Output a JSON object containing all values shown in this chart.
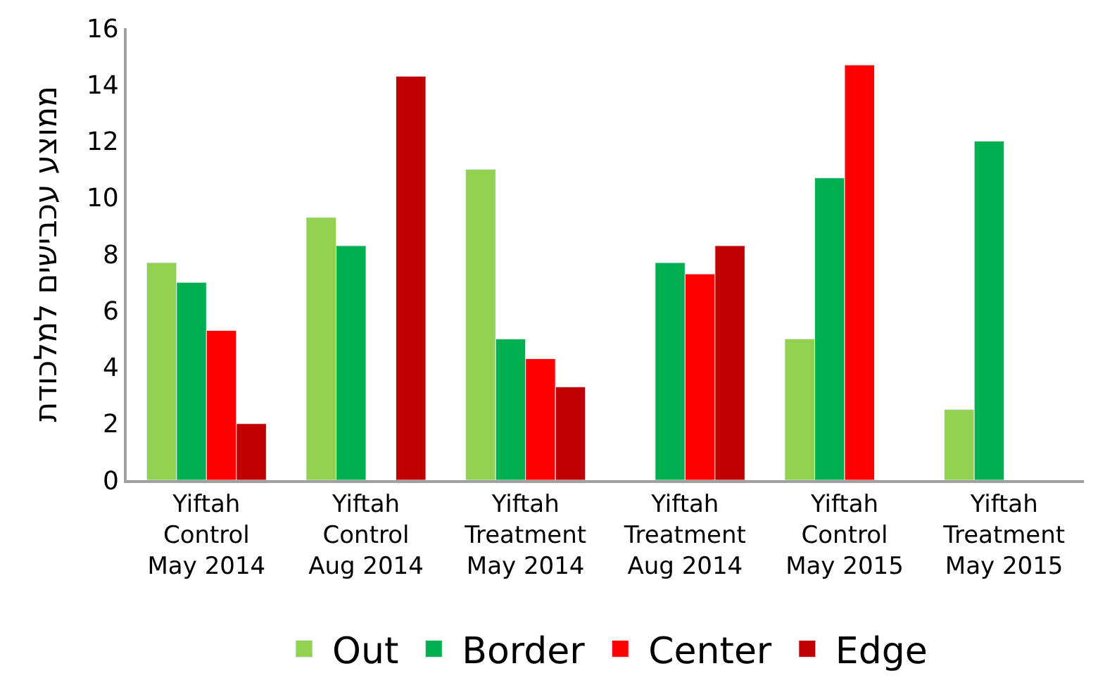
{
  "chart_data": {
    "type": "bar",
    "ylabel": "ממוצע עכבישים למלכודת",
    "categories": [
      "Yiftah\nControl\nMay 2014",
      "Yiftah\nControl\nAug 2014",
      "Yiftah\nTreatment\nMay 2014",
      "Yiftah\nTreatment\nAug 2014",
      "Yiftah\nControl\nMay 2015",
      "Yiftah\nTreatment\nMay 2015"
    ],
    "series": [
      {
        "name": "Out",
        "color": "#92d050",
        "values": [
          7.7,
          9.3,
          11.0,
          null,
          5.0,
          2.5
        ]
      },
      {
        "name": "Border",
        "color": "#00b050",
        "values": [
          7.0,
          8.3,
          5.0,
          7.7,
          10.7,
          12.0
        ]
      },
      {
        "name": "Center",
        "color": "#ff0000",
        "values": [
          5.3,
          null,
          4.3,
          7.3,
          14.7,
          null
        ]
      },
      {
        "name": "Edge",
        "color": "#c00000",
        "values": [
          2.0,
          14.3,
          3.3,
          8.3,
          null,
          null
        ]
      }
    ],
    "ylim": [
      0,
      16
    ],
    "yticks": [
      0,
      2,
      4,
      6,
      8,
      10,
      12,
      14,
      16
    ],
    "grid": false,
    "legend": "bottom"
  }
}
